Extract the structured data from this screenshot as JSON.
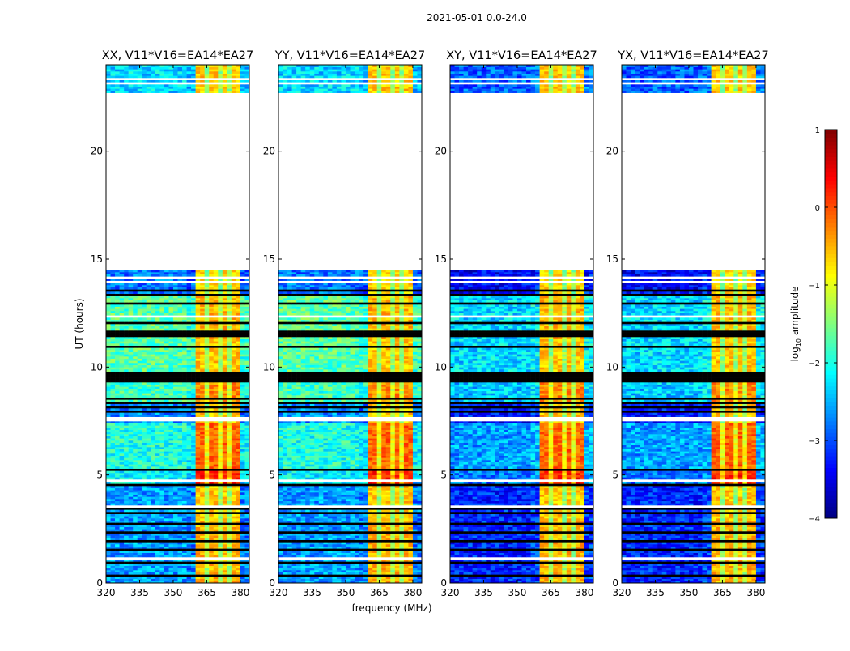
{
  "chart_data": {
    "type": "heatmap",
    "title": "2021-05-01 0.0-24.0",
    "xlabel": "frequency (MHz)",
    "ylabel": "UT (hours)",
    "xlim": [
      320,
      384
    ],
    "ylim": [
      0,
      24
    ],
    "xticks": [
      "320",
      "335",
      "350",
      "365",
      "380"
    ],
    "xtick_values": [
      320,
      335,
      350,
      365,
      380
    ],
    "yticks": [
      "0",
      "5",
      "10",
      "15",
      "20"
    ],
    "ytick_values": [
      0,
      5,
      10,
      15,
      20
    ],
    "panels": [
      {
        "title": "XX, V11*V16=EA14*EA27",
        "bg_offset": 0.3
      },
      {
        "title": "YY, V11*V16=EA14*EA27",
        "bg_offset": 0.3
      },
      {
        "title": "XY, V11*V16=EA14*EA27",
        "bg_offset": -0.3
      },
      {
        "title": "YX, V11*V16=EA14*EA27",
        "bg_offset": -0.3
      }
    ],
    "colorbar": {
      "label": "log10 amplitude",
      "label_main": "log",
      "label_sub": "10",
      "label_rest": " amplitude",
      "clim": [
        -4,
        1
      ],
      "ticks": [
        "1",
        "0",
        "−1",
        "−2",
        "−3",
        "−4"
      ],
      "tick_values": [
        1,
        0,
        -1,
        -2,
        -3,
        -4
      ],
      "colormap": "jet"
    },
    "rfi_band_mhz": [
      360,
      380
    ],
    "rfi_gaps_mhz": [
      365.5,
      370,
      375
    ],
    "no_data_hours": [
      [
        14.5,
        22.7
      ]
    ],
    "segments": [
      {
        "from": 0,
        "to": 2.9,
        "bg": -2.9,
        "rfi": -0.5
      },
      {
        "from": 2.9,
        "to": 4.6,
        "bg": -2.9,
        "rfi": -0.6
      },
      {
        "from": 4.6,
        "to": 5.2,
        "bg": -2.5,
        "rfi": 0.2
      },
      {
        "from": 5.2,
        "to": 7.4,
        "bg": -2.3,
        "rfi": -0.1
      },
      {
        "from": 7.4,
        "to": 8.3,
        "bg": -3.0,
        "rfi": -0.6
      },
      {
        "from": 8.3,
        "to": 9.3,
        "bg": -2.1,
        "rfi": -0.3
      },
      {
        "from": 9.3,
        "to": 11.3,
        "bg": -2.0,
        "rfi": -0.6
      },
      {
        "from": 11.3,
        "to": 13.4,
        "bg": -2.0,
        "rfi": -0.5
      },
      {
        "from": 13.4,
        "to": 14.5,
        "bg": -3.1,
        "rfi": -0.7
      },
      {
        "from": 22.7,
        "to": 24,
        "bg": -2.6,
        "rfi": -0.6
      }
    ],
    "flagged_hours": [
      0.35,
      0.9,
      1.6,
      2.0,
      2.4,
      2.8,
      3.3,
      3.5,
      4.55,
      5.25,
      7.9,
      8.1,
      8.3,
      8.5,
      9.3,
      9.4,
      9.5,
      9.6,
      9.7,
      10.9,
      11.4,
      11.5,
      11.6,
      12.0,
      12.9,
      13.3,
      13.5
    ],
    "blank_hours": [
      1.1,
      3.6,
      4.7,
      7.5,
      7.6,
      12.3,
      13.9,
      14.1,
      23.2,
      23.4
    ]
  }
}
